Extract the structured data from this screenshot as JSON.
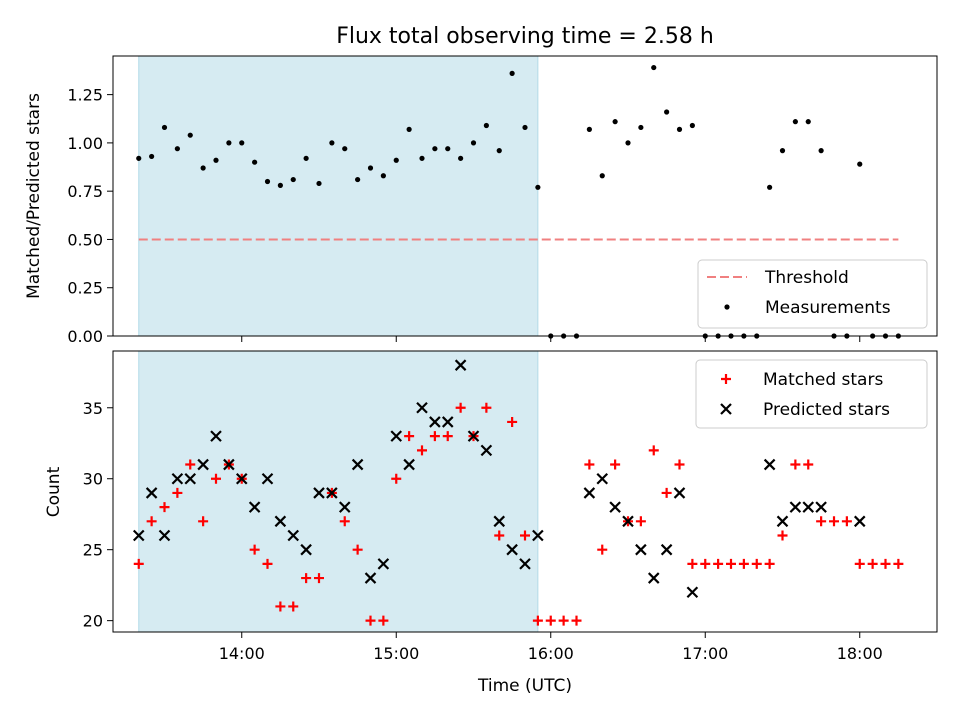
{
  "chart_data": [
    {
      "type": "scatter",
      "title": "Flux total observing time = 2.58 h",
      "xlabel": "",
      "ylabel": "Matched/Predicted stars",
      "ylim": [
        0,
        1.45
      ],
      "yticks": [
        "0.00",
        "0.25",
        "0.50",
        "0.75",
        "1.00",
        "1.25"
      ],
      "ytick_values": [
        0,
        0.25,
        0.5,
        0.75,
        1.0,
        1.25
      ],
      "xlim": [
        "13:10",
        "18:30"
      ],
      "shaded_span": [
        "13:20",
        "15:55"
      ],
      "shaded_color": "#add8e6",
      "legend_position": "lower-right",
      "threshold": {
        "name": "Threshold",
        "value": 0.5,
        "x_start": "13:20",
        "x_end": "18:15",
        "color": "#f08080"
      },
      "series": [
        {
          "name": "Measurements",
          "color": "#000000",
          "points": [
            [
              "13:20",
              0.92
            ],
            [
              "13:25",
              0.93
            ],
            [
              "13:30",
              1.08
            ],
            [
              "13:35",
              0.97
            ],
            [
              "13:40",
              1.04
            ],
            [
              "13:45",
              0.87
            ],
            [
              "13:50",
              0.91
            ],
            [
              "13:55",
              1.0
            ],
            [
              "14:00",
              1.0
            ],
            [
              "14:05",
              0.9
            ],
            [
              "14:10",
              0.8
            ],
            [
              "14:15",
              0.78
            ],
            [
              "14:20",
              0.81
            ],
            [
              "14:25",
              0.92
            ],
            [
              "14:30",
              0.79
            ],
            [
              "14:35",
              1.0
            ],
            [
              "14:40",
              0.97
            ],
            [
              "14:45",
              0.81
            ],
            [
              "14:50",
              0.87
            ],
            [
              "14:55",
              0.83
            ],
            [
              "15:00",
              0.91
            ],
            [
              "15:05",
              1.07
            ],
            [
              "15:10",
              0.92
            ],
            [
              "15:15",
              0.97
            ],
            [
              "15:20",
              0.97
            ],
            [
              "15:25",
              0.92
            ],
            [
              "15:30",
              1.0
            ],
            [
              "15:35",
              1.09
            ],
            [
              "15:40",
              0.96
            ],
            [
              "15:45",
              1.36
            ],
            [
              "15:50",
              1.08
            ],
            [
              "15:55",
              0.77
            ],
            [
              "16:00",
              0.0
            ],
            [
              "16:05",
              0.0
            ],
            [
              "16:10",
              0.0
            ],
            [
              "16:15",
              1.07
            ],
            [
              "16:20",
              0.83
            ],
            [
              "16:25",
              1.11
            ],
            [
              "16:30",
              1.0
            ],
            [
              "16:35",
              1.08
            ],
            [
              "16:40",
              1.39
            ],
            [
              "16:45",
              1.16
            ],
            [
              "16:50",
              1.07
            ],
            [
              "16:55",
              1.09
            ],
            [
              "17:00",
              0.0
            ],
            [
              "17:05",
              0.0
            ],
            [
              "17:10",
              0.0
            ],
            [
              "17:15",
              0.0
            ],
            [
              "17:20",
              0.0
            ],
            [
              "17:25",
              0.77
            ],
            [
              "17:30",
              0.96
            ],
            [
              "17:35",
              1.11
            ],
            [
              "17:40",
              1.11
            ],
            [
              "17:45",
              0.96
            ],
            [
              "17:50",
              0.0
            ],
            [
              "17:55",
              0.0
            ],
            [
              "18:00",
              0.89
            ],
            [
              "18:05",
              0.0
            ],
            [
              "18:10",
              0.0
            ],
            [
              "18:15",
              0.0
            ]
          ]
        }
      ]
    },
    {
      "type": "scatter",
      "title": "",
      "xlabel": "Time (UTC)",
      "ylabel": "Count",
      "ylim": [
        19.2,
        39
      ],
      "yticks": [
        "20",
        "25",
        "30",
        "35"
      ],
      "ytick_values": [
        20,
        25,
        30,
        35
      ],
      "xlim": [
        "13:10",
        "18:30"
      ],
      "xticks": [
        "14:00",
        "15:00",
        "16:00",
        "17:00",
        "18:00"
      ],
      "shaded_span": [
        "13:20",
        "15:55"
      ],
      "shaded_color": "#add8e6",
      "legend_position": "upper-right",
      "x": [
        "13:20",
        "13:25",
        "13:30",
        "13:35",
        "13:40",
        "13:45",
        "13:50",
        "13:55",
        "14:00",
        "14:05",
        "14:10",
        "14:15",
        "14:20",
        "14:25",
        "14:30",
        "14:35",
        "14:40",
        "14:45",
        "14:50",
        "14:55",
        "15:00",
        "15:05",
        "15:10",
        "15:15",
        "15:20",
        "15:25",
        "15:30",
        "15:35",
        "15:40",
        "15:45",
        "15:50",
        "15:55",
        "16:00",
        "16:05",
        "16:10",
        "16:15",
        "16:20",
        "16:25",
        "16:30",
        "16:35",
        "16:40",
        "16:45",
        "16:50",
        "16:55",
        "17:00",
        "17:05",
        "17:10",
        "17:15",
        "17:20",
        "17:25",
        "17:30",
        "17:35",
        "17:40",
        "17:45",
        "17:50",
        "17:55",
        "18:00",
        "18:05",
        "18:10",
        "18:15"
      ],
      "series": [
        {
          "name": "Matched stars",
          "marker": "plus",
          "color": "#ff0000",
          "values": [
            24,
            27,
            28,
            29,
            31,
            27,
            30,
            31,
            30,
            25,
            24,
            21,
            21,
            23,
            23,
            29,
            27,
            25,
            20,
            20,
            30,
            33,
            32,
            33,
            33,
            35,
            33,
            35,
            26,
            34,
            26,
            20,
            20,
            20,
            20,
            31,
            25,
            31,
            27,
            27,
            32,
            29,
            31,
            24,
            24,
            24,
            24,
            24,
            24,
            24,
            26,
            31,
            31,
            27,
            27,
            27,
            24,
            24,
            24,
            24
          ]
        },
        {
          "name": "Predicted stars",
          "marker": "x",
          "color": "#000000",
          "points": [
            [
              "13:20",
              26
            ],
            [
              "13:25",
              29
            ],
            [
              "13:30",
              26
            ],
            [
              "13:35",
              30
            ],
            [
              "13:40",
              30
            ],
            [
              "13:45",
              31
            ],
            [
              "13:50",
              33
            ],
            [
              "13:55",
              31
            ],
            [
              "14:00",
              30
            ],
            [
              "14:05",
              28
            ],
            [
              "14:10",
              30
            ],
            [
              "14:15",
              27
            ],
            [
              "14:20",
              26
            ],
            [
              "14:25",
              25
            ],
            [
              "14:30",
              29
            ],
            [
              "14:35",
              29
            ],
            [
              "14:40",
              28
            ],
            [
              "14:45",
              31
            ],
            [
              "14:50",
              23
            ],
            [
              "14:55",
              24
            ],
            [
              "15:00",
              33
            ],
            [
              "15:05",
              31
            ],
            [
              "15:10",
              35
            ],
            [
              "15:15",
              34
            ],
            [
              "15:20",
              34
            ],
            [
              "15:25",
              38
            ],
            [
              "15:30",
              33
            ],
            [
              "15:35",
              32
            ],
            [
              "15:40",
              27
            ],
            [
              "15:45",
              25
            ],
            [
              "15:50",
              24
            ],
            [
              "15:55",
              26
            ],
            [
              "16:15",
              29
            ],
            [
              "16:20",
              30
            ],
            [
              "16:25",
              28
            ],
            [
              "16:30",
              27
            ],
            [
              "16:35",
              25
            ],
            [
              "16:40",
              23
            ],
            [
              "16:45",
              25
            ],
            [
              "16:50",
              29
            ],
            [
              "16:55",
              22
            ],
            [
              "17:25",
              31
            ],
            [
              "17:30",
              27
            ],
            [
              "17:35",
              28
            ],
            [
              "17:40",
              28
            ],
            [
              "17:45",
              28
            ],
            [
              "18:00",
              27
            ]
          ]
        }
      ]
    }
  ]
}
